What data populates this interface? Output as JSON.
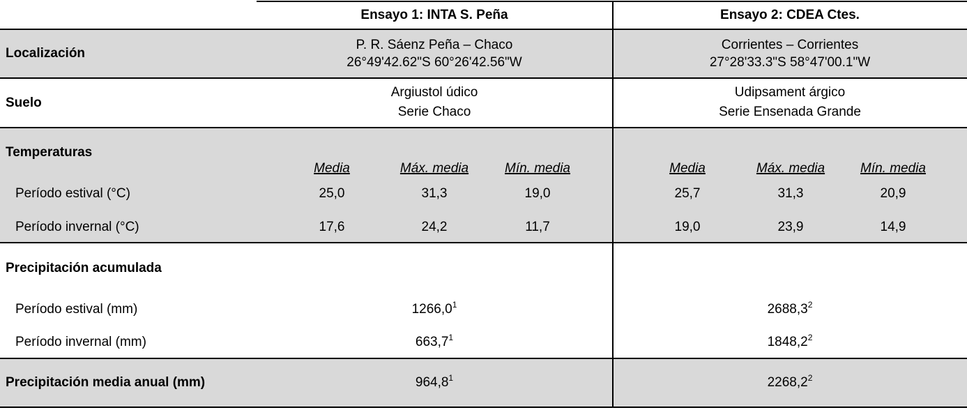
{
  "header": {
    "trial1": "Ensayo 1: INTA S. Peña",
    "trial2": "Ensayo 2: CDEA Ctes."
  },
  "location": {
    "label": "Localización",
    "trial1": [
      "P. R. Sáenz Peña – Chaco",
      "26°49'42.62\"S 60°26'42.56\"W"
    ],
    "trial2": [
      "Corrientes – Corrientes",
      "27°28'33.3\"S 58°47'00.1\"W"
    ]
  },
  "soil": {
    "label": "Suelo",
    "trial1": [
      "Argiustol údico",
      "Serie Chaco"
    ],
    "trial2": [
      "Udipsament árgico",
      "Serie Ensenada Grande"
    ]
  },
  "temperatures": {
    "label": "Temperaturas",
    "columns": [
      "Media",
      "Máx. media",
      "Mín. media"
    ],
    "rows": [
      {
        "label": "Período estival (°C)",
        "trial1": [
          "25,0",
          "31,3",
          "19,0"
        ],
        "trial2": [
          "25,7",
          "31,3",
          "20,9"
        ]
      },
      {
        "label": "Período invernal (°C)",
        "trial1": [
          "17,6",
          "24,2",
          "11,7"
        ],
        "trial2": [
          "19,0",
          "23,9",
          "14,9"
        ]
      }
    ]
  },
  "precipitation": {
    "label": "Precipitación acumulada",
    "rows": [
      {
        "label": "Período estival (mm)",
        "trial1": {
          "value": "1266,0",
          "note": "1"
        },
        "trial2": {
          "value": "2688,3",
          "note": "2"
        }
      },
      {
        "label": "Período invernal (mm)",
        "trial1": {
          "value": "663,7",
          "note": "1"
        },
        "trial2": {
          "value": "1848,2",
          "note": "2"
        }
      }
    ]
  },
  "annual": {
    "label": "Precipitación media anual (mm)",
    "trial1": {
      "value": "964,8",
      "note": "1"
    },
    "trial2": {
      "value": "2268,2",
      "note": "2"
    }
  }
}
